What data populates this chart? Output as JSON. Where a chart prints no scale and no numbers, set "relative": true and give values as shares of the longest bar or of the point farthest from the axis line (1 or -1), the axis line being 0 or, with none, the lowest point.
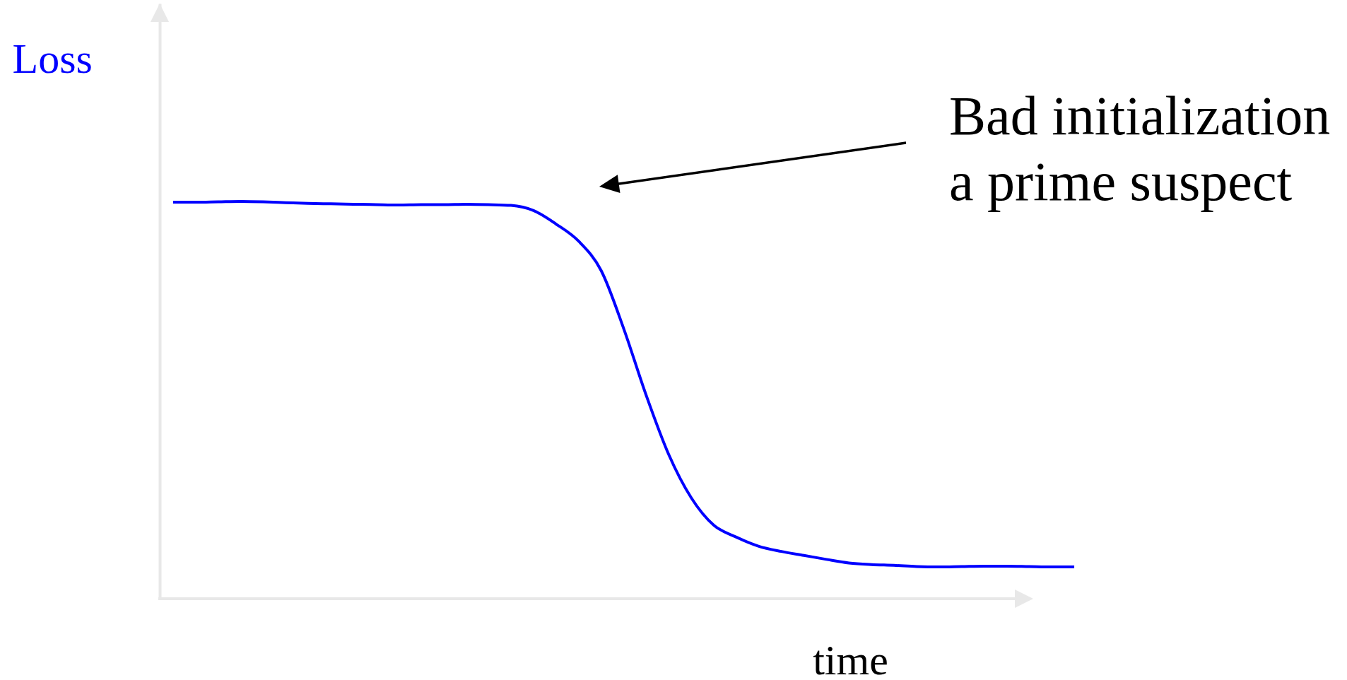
{
  "chart_data": {
    "type": "line",
    "relative": true,
    "xlabel": "time",
    "ylabel": "Loss",
    "annotations": [
      "Bad initialization\na prime suspect"
    ],
    "categories": [
      null,
      null,
      null,
      null,
      null,
      null,
      null,
      null,
      null,
      null,
      null,
      null,
      null,
      null,
      null,
      null,
      null,
      null,
      null,
      null,
      null,
      null,
      null,
      null,
      null,
      null,
      null,
      null,
      null,
      null,
      null,
      null,
      null,
      null,
      null,
      null,
      null,
      null,
      null,
      null,
      null
    ],
    "series": [
      {
        "color": "#0000ff",
        "values": [
          0.998,
          0.998,
          0.999,
          1.0,
          0.999,
          0.997,
          0.995,
          0.994,
          0.993,
          0.992,
          0.991,
          0.992,
          0.992,
          0.993,
          0.992,
          0.99,
          0.977,
          0.943,
          0.9,
          0.826,
          0.68,
          0.512,
          0.363,
          0.254,
          0.185,
          0.155,
          0.132,
          0.119,
          0.109,
          0.099,
          0.09,
          0.086,
          0.084,
          0.081,
          0.08,
          0.081,
          0.082,
          0.082,
          0.081,
          0.08,
          0.08
        ]
      }
    ],
    "grid": false,
    "line_style": "solid"
  }
}
